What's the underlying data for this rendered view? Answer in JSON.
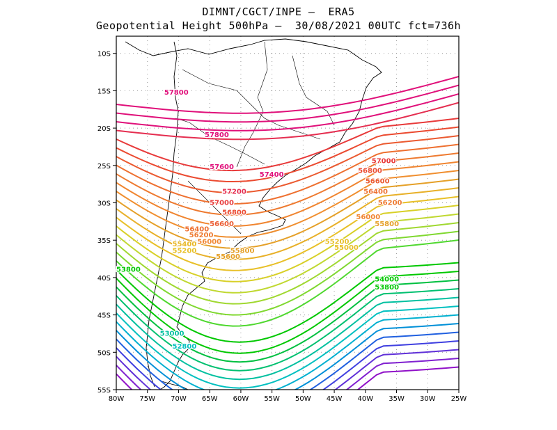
{
  "title": {
    "line1": "DIMNT/CGCT/INPE –  ERA5",
    "line2": "Geopotential Height 500hPa –  30/08/2021 00UTC fct=736h"
  },
  "axes": {
    "lat_ticks": [
      "10S",
      "15S",
      "20S",
      "25S",
      "30S",
      "35S",
      "40S",
      "45S",
      "50S",
      "55S"
    ],
    "lon_ticks": [
      "80W",
      "75W",
      "70W",
      "65W",
      "60W",
      "55W",
      "50W",
      "45W",
      "40W",
      "35W",
      "30W",
      "25W"
    ]
  },
  "contour_labels": [
    {
      "text": "57800",
      "color": "#e0107a",
      "lon": -72.3,
      "lat": -15.5
    },
    {
      "text": "57800",
      "color": "#e0107a",
      "lon": -65.8,
      "lat": -21.2
    },
    {
      "text": "57600",
      "color": "#e0107a",
      "lon": -65.0,
      "lat": -25.5
    },
    {
      "text": "57400",
      "color": "#e0107a",
      "lon": -57.0,
      "lat": -26.5
    },
    {
      "text": "57200",
      "color": "#e52e50",
      "lon": -63.0,
      "lat": -28.8
    },
    {
      "text": "57000",
      "color": "#e83a3a",
      "lon": -65.0,
      "lat": -30.3
    },
    {
      "text": "56800",
      "color": "#eb4a30",
      "lon": -63.0,
      "lat": -31.6
    },
    {
      "text": "56600",
      "color": "#eb5a30",
      "lon": -65.0,
      "lat": -33.1
    },
    {
      "text": "56400",
      "color": "#ee7030",
      "lon": -69.0,
      "lat": -33.8
    },
    {
      "text": "56200",
      "color": "#ee7a30",
      "lon": -68.3,
      "lat": -34.6
    },
    {
      "text": "56000",
      "color": "#f08530",
      "lon": -67.0,
      "lat": -35.5
    },
    {
      "text": "55800",
      "color": "#e5a028",
      "lon": -61.7,
      "lat": -36.7
    },
    {
      "text": "55600",
      "color": "#e5a028",
      "lon": -64.0,
      "lat": -37.5
    },
    {
      "text": "55400",
      "color": "#e8b828",
      "lon": -71.0,
      "lat": -35.8
    },
    {
      "text": "55200",
      "color": "#e8c028",
      "lon": -71.0,
      "lat": -36.7
    },
    {
      "text": "57000",
      "color": "#e83a3a",
      "lon": -39.0,
      "lat": -24.7
    },
    {
      "text": "56800",
      "color": "#eb4a30",
      "lon": -41.2,
      "lat": -26.0
    },
    {
      "text": "56600",
      "color": "#eb5a30",
      "lon": -40.0,
      "lat": -27.4
    },
    {
      "text": "56400",
      "color": "#ee7030",
      "lon": -40.3,
      "lat": -28.8
    },
    {
      "text": "56200",
      "color": "#ee7a30",
      "lon": -38.0,
      "lat": -30.3
    },
    {
      "text": "56000",
      "color": "#f08530",
      "lon": -41.5,
      "lat": -32.2
    },
    {
      "text": "55800",
      "color": "#e5a028",
      "lon": -38.5,
      "lat": -33.1
    },
    {
      "text": "55200",
      "color": "#e8c028",
      "lon": -46.5,
      "lat": -35.5
    },
    {
      "text": "55000",
      "color": "#e8c028",
      "lon": -45.0,
      "lat": -36.3
    },
    {
      "text": "54000",
      "color": "#00c800",
      "lon": -38.5,
      "lat": -40.5
    },
    {
      "text": "53800",
      "color": "#00c800",
      "lon": -38.5,
      "lat": -41.6
    },
    {
      "text": "53800",
      "color": "#00c800",
      "lon": -80.0,
      "lat": -39.2
    },
    {
      "text": "53000",
      "color": "#00c0a0",
      "lon": -73.0,
      "lat": -47.8
    },
    {
      "text": "52800",
      "color": "#00c0c0",
      "lon": -71.0,
      "lat": -49.5
    }
  ]
}
